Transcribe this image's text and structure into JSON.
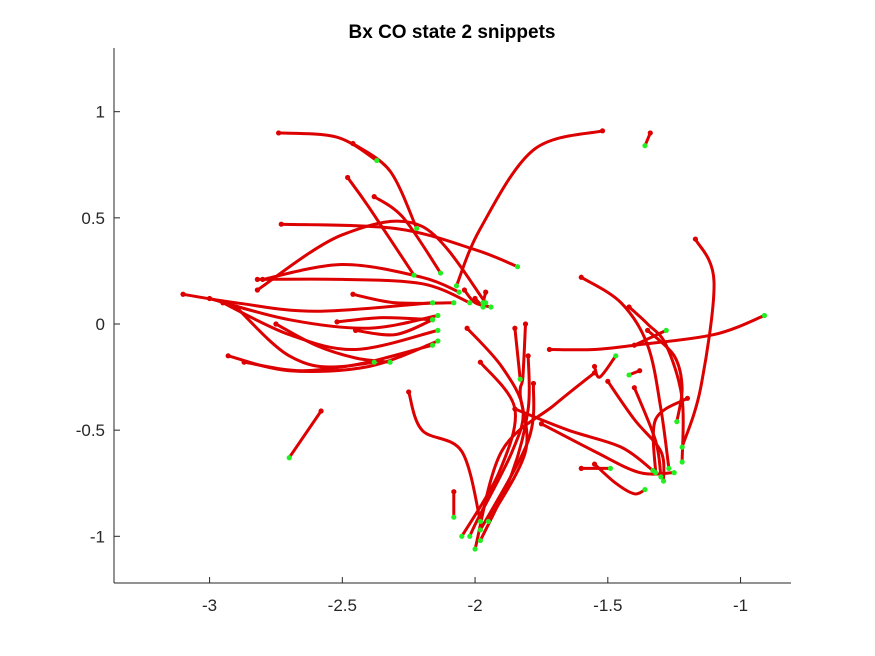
{
  "chart_data": {
    "type": "line",
    "title": "Bx  CO state 2 snippets",
    "xlabel": "",
    "ylabel": "",
    "xlim": [
      -3.36,
      -0.81
    ],
    "ylim": [
      -1.22,
      1.3
    ],
    "xticks": [
      -3,
      -2.5,
      -2,
      -1.5,
      -1
    ],
    "xtick_labels": [
      "-3",
      "-2.5",
      "-2",
      "-1.5",
      "-1"
    ],
    "yticks": [
      1,
      0.5,
      0,
      -0.5,
      -1
    ],
    "ytick_labels": [
      "1",
      "0.5",
      "0",
      "-0.5",
      "-1"
    ],
    "grid": false,
    "colors": {
      "trajectory": "#dd0000",
      "start_marker": "#dd0000",
      "end_marker": "#22ee22",
      "axis": "#262626"
    },
    "series": [
      {
        "points": [
          [
            -2.74,
            0.9
          ],
          [
            -2.52,
            0.88
          ],
          [
            -2.37,
            0.77
          ]
        ]
      },
      {
        "points": [
          [
            -2.46,
            0.85
          ],
          [
            -2.32,
            0.72
          ],
          [
            -2.22,
            0.45
          ]
        ]
      },
      {
        "points": [
          [
            -2.48,
            0.69
          ],
          [
            -2.4,
            0.55
          ],
          [
            -2.23,
            0.23
          ]
        ]
      },
      {
        "points": [
          [
            -2.38,
            0.6
          ],
          [
            -2.27,
            0.5
          ],
          [
            -2.13,
            0.24
          ]
        ]
      },
      {
        "points": [
          [
            -1.52,
            0.91
          ],
          [
            -1.78,
            0.82
          ],
          [
            -1.98,
            0.45
          ],
          [
            -2.07,
            0.18
          ]
        ]
      },
      {
        "points": [
          [
            -1.34,
            0.9
          ],
          [
            -1.36,
            0.84
          ]
        ]
      },
      {
        "points": [
          [
            -2.73,
            0.47
          ],
          [
            -2.3,
            0.45
          ],
          [
            -2.0,
            0.35
          ],
          [
            -1.84,
            0.27
          ]
        ]
      },
      {
        "points": [
          [
            -2.82,
            0.16
          ],
          [
            -2.5,
            0.42
          ],
          [
            -2.2,
            0.46
          ],
          [
            -1.96,
            0.1
          ]
        ]
      },
      {
        "points": [
          [
            -2.82,
            0.21
          ],
          [
            -2.5,
            0.21
          ],
          [
            -2.2,
            0.19
          ],
          [
            -2.02,
            0.1
          ]
        ]
      },
      {
        "points": [
          [
            -2.8,
            0.21
          ],
          [
            -2.5,
            0.28
          ],
          [
            -2.2,
            0.22
          ],
          [
            -2.06,
            0.15
          ]
        ]
      },
      {
        "points": [
          [
            -2.46,
            0.14
          ],
          [
            -2.3,
            0.1
          ],
          [
            -2.08,
            0.1
          ]
        ]
      },
      {
        "points": [
          [
            -3.1,
            0.14
          ],
          [
            -2.9,
            0.1
          ],
          [
            -2.6,
            0.06
          ],
          [
            -2.16,
            0.1
          ]
        ]
      },
      {
        "points": [
          [
            -3.0,
            0.12
          ],
          [
            -2.7,
            0.02
          ],
          [
            -2.4,
            -0.02
          ],
          [
            -2.14,
            0.04
          ]
        ]
      },
      {
        "points": [
          [
            -2.95,
            0.1
          ],
          [
            -2.7,
            -0.05
          ],
          [
            -2.45,
            -0.12
          ],
          [
            -2.14,
            -0.03
          ]
        ]
      },
      {
        "points": [
          [
            -2.9,
            0.08
          ],
          [
            -2.7,
            -0.15
          ],
          [
            -2.5,
            -0.2
          ],
          [
            -2.16,
            -0.1
          ]
        ]
      },
      {
        "points": [
          [
            -2.93,
            -0.15
          ],
          [
            -2.7,
            -0.22
          ],
          [
            -2.4,
            -0.2
          ],
          [
            -2.14,
            -0.08
          ]
        ]
      },
      {
        "points": [
          [
            -2.87,
            -0.18
          ],
          [
            -2.65,
            -0.22
          ],
          [
            -2.38,
            -0.18
          ]
        ]
      },
      {
        "points": [
          [
            -2.75,
            0.0
          ],
          [
            -2.6,
            -0.1
          ],
          [
            -2.45,
            -0.16
          ],
          [
            -2.32,
            -0.18
          ]
        ]
      },
      {
        "points": [
          [
            -2.52,
            0.01
          ],
          [
            -2.35,
            0.03
          ],
          [
            -2.16,
            0.02
          ]
        ]
      },
      {
        "points": [
          [
            -2.45,
            -0.03
          ],
          [
            -2.3,
            -0.05
          ],
          [
            -2.16,
            0.02
          ]
        ]
      },
      {
        "points": [
          [
            -2.58,
            -0.41
          ],
          [
            -2.7,
            -0.63
          ]
        ]
      },
      {
        "points": [
          [
            -2.25,
            -0.32
          ],
          [
            -2.2,
            -0.5
          ],
          [
            -2.05,
            -0.6
          ],
          [
            -1.98,
            -0.93
          ]
        ]
      },
      {
        "points": [
          [
            -2.08,
            -0.79
          ],
          [
            -2.08,
            -0.91
          ]
        ]
      },
      {
        "points": [
          [
            -2.03,
            -0.02
          ],
          [
            -1.9,
            -0.2
          ],
          [
            -1.82,
            -0.4
          ],
          [
            -1.86,
            -0.6
          ],
          [
            -1.99,
            -0.92
          ],
          [
            -2.02,
            -1.0
          ]
        ]
      },
      {
        "points": [
          [
            -1.98,
            -0.18
          ],
          [
            -1.85,
            -0.4
          ],
          [
            -1.91,
            -0.7
          ],
          [
            -2.05,
            -1.0
          ]
        ]
      },
      {
        "points": [
          [
            -1.8,
            -0.15
          ],
          [
            -1.8,
            -0.4
          ],
          [
            -1.86,
            -0.7
          ],
          [
            -1.98,
            -1.02
          ]
        ]
      },
      {
        "points": [
          [
            -1.81,
            0.0
          ],
          [
            -1.82,
            -0.25
          ],
          [
            -1.83,
            -0.33
          ],
          [
            -1.81,
            -0.6
          ],
          [
            -1.95,
            -0.93
          ]
        ]
      },
      {
        "points": [
          [
            -1.85,
            -0.02
          ],
          [
            -1.83,
            -0.26
          ]
        ]
      },
      {
        "points": [
          [
            -1.78,
            -0.28
          ],
          [
            -1.8,
            -0.55
          ],
          [
            -1.98,
            -0.97
          ]
        ]
      },
      {
        "points": [
          [
            -1.55,
            -0.23
          ],
          [
            -1.7,
            -0.38
          ],
          [
            -1.9,
            -0.6
          ],
          [
            -2.0,
            -1.06
          ]
        ]
      },
      {
        "points": [
          [
            -1.72,
            -0.12
          ],
          [
            -1.55,
            -0.12
          ],
          [
            -1.4,
            -0.1
          ],
          [
            -1.1,
            -0.05
          ],
          [
            -0.91,
            0.04
          ]
        ]
      },
      {
        "points": [
          [
            -1.85,
            -0.4
          ],
          [
            -1.65,
            -0.5
          ],
          [
            -1.45,
            -0.58
          ],
          [
            -1.33,
            -0.69
          ]
        ]
      },
      {
        "points": [
          [
            -1.6,
            0.22
          ],
          [
            -1.45,
            0.1
          ],
          [
            -1.35,
            -0.1
          ],
          [
            -1.3,
            -0.4
          ],
          [
            -1.27,
            -0.68
          ]
        ]
      },
      {
        "points": [
          [
            -1.55,
            -0.2
          ],
          [
            -1.53,
            -0.25
          ],
          [
            -1.47,
            -0.15
          ]
        ]
      },
      {
        "points": [
          [
            -1.38,
            -0.22
          ],
          [
            -1.42,
            -0.24
          ]
        ]
      },
      {
        "points": [
          [
            -1.42,
            0.08
          ],
          [
            -1.35,
            0.0
          ],
          [
            -1.28,
            -0.1
          ],
          [
            -1.22,
            -0.35
          ],
          [
            -1.22,
            -0.65
          ]
        ]
      },
      {
        "points": [
          [
            -1.5,
            -0.27
          ],
          [
            -1.4,
            -0.45
          ],
          [
            -1.3,
            -0.6
          ],
          [
            -1.29,
            -0.74
          ]
        ]
      },
      {
        "points": [
          [
            -1.4,
            -0.3
          ],
          [
            -1.32,
            -0.55
          ],
          [
            -1.3,
            -0.72
          ]
        ]
      },
      {
        "points": [
          [
            -1.75,
            -0.47
          ],
          [
            -1.55,
            -0.6
          ],
          [
            -1.38,
            -0.7
          ],
          [
            -1.25,
            -0.7
          ]
        ]
      },
      {
        "points": [
          [
            -1.55,
            -0.66
          ],
          [
            -1.47,
            -0.75
          ],
          [
            -1.4,
            -0.8
          ],
          [
            -1.36,
            -0.78
          ]
        ]
      },
      {
        "points": [
          [
            -1.6,
            -0.68
          ],
          [
            -1.49,
            -0.68
          ]
        ]
      },
      {
        "points": [
          [
            -1.35,
            -0.03
          ],
          [
            -1.25,
            -0.15
          ],
          [
            -1.22,
            -0.3
          ],
          [
            -1.24,
            -0.46
          ]
        ]
      },
      {
        "points": [
          [
            -1.17,
            0.4
          ],
          [
            -1.1,
            0.2
          ],
          [
            -1.15,
            -0.3
          ],
          [
            -1.22,
            -0.58
          ]
        ]
      },
      {
        "points": [
          [
            -1.2,
            -0.35
          ],
          [
            -1.32,
            -0.45
          ],
          [
            -1.32,
            -0.7
          ]
        ]
      },
      {
        "points": [
          [
            -1.4,
            -0.1
          ],
          [
            -1.28,
            -0.03
          ]
        ]
      },
      {
        "points": [
          [
            -2.0,
            0.12
          ],
          [
            -1.97,
            0.08
          ]
        ]
      },
      {
        "points": [
          [
            -1.96,
            0.15
          ],
          [
            -1.97,
            0.1
          ]
        ]
      },
      {
        "points": [
          [
            -2.04,
            0.16
          ],
          [
            -2.0,
            0.1
          ],
          [
            -1.94,
            0.08
          ]
        ]
      }
    ]
  }
}
